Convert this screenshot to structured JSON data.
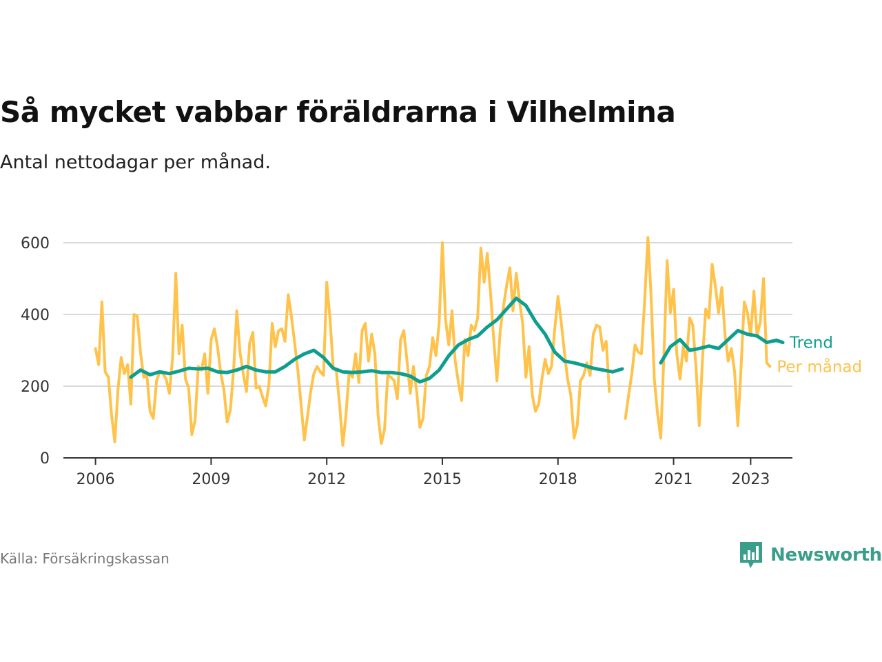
{
  "title": "Så mycket vabbar föräldrarna i Vilhelmina",
  "subtitle": "Antal nettodagar per månad.",
  "source": "Källa: Försäkringskassan",
  "brand": {
    "name": "Newsworthy",
    "color": "#3a9e8a",
    "icon": "speech-bubble-bar-chart-icon"
  },
  "colors": {
    "trend": "#0e9e8e",
    "monthly": "#ffc24a",
    "grid": "#d9d9d9",
    "axis": "#333333"
  },
  "chart_data": {
    "type": "line",
    "title": "Så mycket vabbar föräldrarna i Vilhelmina",
    "subtitle": "Antal nettodagar per månad.",
    "xlabel": "",
    "ylabel": "",
    "x_ticks": [
      "2006",
      "2009",
      "2012",
      "2015",
      "2018",
      "2021",
      "2023"
    ],
    "y_ticks": [
      0,
      200,
      400,
      600
    ],
    "ylim": [
      0,
      700
    ],
    "xlim": [
      "2005-03",
      "2024-02"
    ],
    "grid": true,
    "legend": "end-of-line labels",
    "series": [
      {
        "name": "Trend",
        "color": "#0e9e8e",
        "points": [
          [
            "2006-12",
            225
          ],
          [
            "2007-03",
            245
          ],
          [
            "2007-06",
            232
          ],
          [
            "2007-09",
            240
          ],
          [
            "2007-12",
            235
          ],
          [
            "2008-03",
            242
          ],
          [
            "2008-06",
            250
          ],
          [
            "2008-09",
            248
          ],
          [
            "2008-12",
            250
          ],
          [
            "2009-03",
            240
          ],
          [
            "2009-06",
            238
          ],
          [
            "2009-09",
            245
          ],
          [
            "2009-12",
            255
          ],
          [
            "2010-03",
            245
          ],
          [
            "2010-06",
            240
          ],
          [
            "2010-09",
            240
          ],
          [
            "2010-12",
            255
          ],
          [
            "2011-03",
            275
          ],
          [
            "2011-06",
            290
          ],
          [
            "2011-09",
            300
          ],
          [
            "2011-12",
            280
          ],
          [
            "2012-03",
            250
          ],
          [
            "2012-06",
            240
          ],
          [
            "2012-09",
            238
          ],
          [
            "2012-12",
            240
          ],
          [
            "2013-03",
            243
          ],
          [
            "2013-06",
            238
          ],
          [
            "2013-09",
            238
          ],
          [
            "2013-12",
            235
          ],
          [
            "2014-03",
            228
          ],
          [
            "2014-06",
            212
          ],
          [
            "2014-09",
            222
          ],
          [
            "2014-12",
            245
          ],
          [
            "2015-03",
            285
          ],
          [
            "2015-06",
            315
          ],
          [
            "2015-09",
            330
          ],
          [
            "2015-12",
            340
          ],
          [
            "2016-03",
            365
          ],
          [
            "2016-06",
            385
          ],
          [
            "2016-09",
            415
          ],
          [
            "2016-12",
            445
          ],
          [
            "2017-03",
            425
          ],
          [
            "2017-06",
            380
          ],
          [
            "2017-09",
            345
          ],
          [
            "2017-12",
            295
          ],
          [
            "2018-03",
            270
          ],
          [
            "2018-06",
            265
          ],
          [
            "2018-09",
            258
          ],
          [
            "2018-12",
            250
          ],
          [
            "2019-03",
            245
          ],
          [
            "2019-06",
            240
          ],
          [
            "2019-09",
            248
          ],
          null,
          [
            "2020-09",
            265
          ],
          [
            "2020-12",
            310
          ],
          [
            "2021-03",
            330
          ],
          [
            "2021-06",
            300
          ],
          [
            "2021-09",
            305
          ],
          [
            "2021-12",
            312
          ],
          [
            "2022-03",
            305
          ],
          [
            "2022-06",
            330
          ],
          [
            "2022-09",
            355
          ],
          [
            "2022-12",
            345
          ],
          [
            "2023-03",
            340
          ],
          [
            "2023-06",
            322
          ],
          [
            "2023-09",
            328
          ],
          [
            "2023-11",
            322
          ]
        ]
      },
      {
        "name": "Per månad",
        "color": "#ffc24a",
        "points": [
          [
            "2006-01",
            305
          ],
          [
            "2006-02",
            260
          ],
          [
            "2006-03",
            435
          ],
          [
            "2006-04",
            240
          ],
          [
            "2006-05",
            225
          ],
          [
            "2006-06",
            120
          ],
          [
            "2006-07",
            45
          ],
          [
            "2006-08",
            190
          ],
          [
            "2006-09",
            280
          ],
          [
            "2006-10",
            235
          ],
          [
            "2006-11",
            260
          ],
          [
            "2006-12",
            150
          ],
          [
            "2007-01",
            400
          ],
          [
            "2007-02",
            395
          ],
          [
            "2007-03",
            295
          ],
          [
            "2007-04",
            225
          ],
          [
            "2007-05",
            230
          ],
          [
            "2007-06",
            130
          ],
          [
            "2007-07",
            110
          ],
          [
            "2007-08",
            215
          ],
          [
            "2007-09",
            240
          ],
          [
            "2007-10",
            235
          ],
          [
            "2007-11",
            220
          ],
          [
            "2007-12",
            180
          ],
          [
            "2008-01",
            280
          ],
          [
            "2008-02",
            515
          ],
          [
            "2008-03",
            290
          ],
          [
            "2008-04",
            370
          ],
          [
            "2008-05",
            220
          ],
          [
            "2008-06",
            195
          ],
          [
            "2008-07",
            65
          ],
          [
            "2008-08",
            105
          ],
          [
            "2008-09",
            255
          ],
          [
            "2008-10",
            245
          ],
          [
            "2008-11",
            290
          ],
          [
            "2008-12",
            180
          ],
          [
            "2009-01",
            330
          ],
          [
            "2009-02",
            360
          ],
          [
            "2009-03",
            310
          ],
          [
            "2009-04",
            235
          ],
          [
            "2009-05",
            190
          ],
          [
            "2009-06",
            100
          ],
          [
            "2009-07",
            135
          ],
          [
            "2009-08",
            245
          ],
          [
            "2009-09",
            410
          ],
          [
            "2009-10",
            295
          ],
          [
            "2009-11",
            235
          ],
          [
            "2009-12",
            185
          ],
          [
            "2010-01",
            320
          ],
          [
            "2010-02",
            350
          ],
          [
            "2010-03",
            195
          ],
          [
            "2010-04",
            200
          ],
          [
            "2010-05",
            170
          ],
          [
            "2010-06",
            145
          ],
          [
            "2010-07",
            205
          ],
          [
            "2010-08",
            375
          ],
          [
            "2010-09",
            310
          ],
          [
            "2010-10",
            355
          ],
          [
            "2010-11",
            360
          ],
          [
            "2010-12",
            325
          ],
          [
            "2011-01",
            455
          ],
          [
            "2011-02",
            395
          ],
          [
            "2011-03",
            320
          ],
          [
            "2011-04",
            245
          ],
          [
            "2011-05",
            150
          ],
          [
            "2011-06",
            50
          ],
          [
            "2011-07",
            115
          ],
          [
            "2011-08",
            185
          ],
          [
            "2011-09",
            235
          ],
          [
            "2011-10",
            255
          ],
          [
            "2011-11",
            240
          ],
          [
            "2011-12",
            230
          ],
          [
            "2012-01",
            490
          ],
          [
            "2012-02",
            390
          ],
          [
            "2012-03",
            255
          ],
          [
            "2012-04",
            240
          ],
          [
            "2012-05",
            150
          ],
          [
            "2012-06",
            35
          ],
          [
            "2012-07",
            120
          ],
          [
            "2012-08",
            240
          ],
          [
            "2012-09",
            225
          ],
          [
            "2012-10",
            290
          ],
          [
            "2012-11",
            210
          ],
          [
            "2012-12",
            355
          ],
          [
            "2013-01",
            375
          ],
          [
            "2013-02",
            270
          ],
          [
            "2013-03",
            345
          ],
          [
            "2013-04",
            290
          ],
          [
            "2013-05",
            115
          ],
          [
            "2013-06",
            40
          ],
          [
            "2013-07",
            80
          ],
          [
            "2013-08",
            230
          ],
          [
            "2013-09",
            225
          ],
          [
            "2013-10",
            215
          ],
          [
            "2013-11",
            165
          ],
          [
            "2013-12",
            330
          ],
          [
            "2014-01",
            355
          ],
          [
            "2014-02",
            270
          ],
          [
            "2014-03",
            180
          ],
          [
            "2014-04",
            255
          ],
          [
            "2014-05",
            185
          ],
          [
            "2014-06",
            85
          ],
          [
            "2014-07",
            110
          ],
          [
            "2014-08",
            230
          ],
          [
            "2014-09",
            255
          ],
          [
            "2014-10",
            335
          ],
          [
            "2014-11",
            285
          ],
          [
            "2014-12",
            375
          ],
          [
            "2015-01",
            600
          ],
          [
            "2015-02",
            385
          ],
          [
            "2015-03",
            315
          ],
          [
            "2015-04",
            410
          ],
          [
            "2015-05",
            270
          ],
          [
            "2015-06",
            210
          ],
          [
            "2015-07",
            160
          ],
          [
            "2015-08",
            330
          ],
          [
            "2015-09",
            285
          ],
          [
            "2015-10",
            370
          ],
          [
            "2015-11",
            355
          ],
          [
            "2015-12",
            390
          ],
          [
            "2016-01",
            585
          ],
          [
            "2016-02",
            490
          ],
          [
            "2016-03",
            570
          ],
          [
            "2016-04",
            460
          ],
          [
            "2016-05",
            330
          ],
          [
            "2016-06",
            215
          ],
          [
            "2016-07",
            355
          ],
          [
            "2016-08",
            420
          ],
          [
            "2016-09",
            480
          ],
          [
            "2016-10",
            530
          ],
          [
            "2016-11",
            410
          ],
          [
            "2016-12",
            515
          ],
          [
            "2017-01",
            440
          ],
          [
            "2017-02",
            375
          ],
          [
            "2017-03",
            225
          ],
          [
            "2017-04",
            310
          ],
          [
            "2017-05",
            175
          ],
          [
            "2017-06",
            130
          ],
          [
            "2017-07",
            150
          ],
          [
            "2017-08",
            220
          ],
          [
            "2017-09",
            275
          ],
          [
            "2017-10",
            235
          ],
          [
            "2017-11",
            255
          ],
          [
            "2017-12",
            360
          ],
          [
            "2018-01",
            450
          ],
          [
            "2018-02",
            380
          ],
          [
            "2018-03",
            295
          ],
          [
            "2018-04",
            220
          ],
          [
            "2018-05",
            175
          ],
          [
            "2018-06",
            55
          ],
          [
            "2018-07",
            90
          ],
          [
            "2018-08",
            215
          ],
          [
            "2018-09",
            230
          ],
          [
            "2018-10",
            265
          ],
          [
            "2018-11",
            230
          ],
          [
            "2018-12",
            345
          ],
          [
            "2019-01",
            370
          ],
          [
            "2019-02",
            365
          ],
          [
            "2019-03",
            300
          ],
          [
            "2019-04",
            325
          ],
          [
            "2019-05",
            185
          ],
          null,
          [
            "2019-10",
            110
          ],
          [
            "2019-11",
            175
          ],
          [
            "2019-12",
            235
          ],
          [
            "2020-01",
            315
          ],
          [
            "2020-02",
            295
          ],
          [
            "2020-03",
            290
          ],
          [
            "2020-04",
            440
          ],
          [
            "2020-05",
            615
          ],
          [
            "2020-06",
            450
          ],
          [
            "2020-07",
            220
          ],
          [
            "2020-08",
            125
          ],
          [
            "2020-09",
            55
          ],
          [
            "2020-10",
            290
          ],
          [
            "2020-11",
            550
          ],
          [
            "2020-12",
            405
          ],
          [
            "2021-01",
            470
          ],
          [
            "2021-02",
            290
          ],
          [
            "2021-03",
            220
          ],
          [
            "2021-04",
            310
          ],
          [
            "2021-05",
            270
          ],
          [
            "2021-06",
            390
          ],
          [
            "2021-07",
            370
          ],
          [
            "2021-08",
            250
          ],
          [
            "2021-09",
            90
          ],
          [
            "2021-10",
            275
          ],
          [
            "2021-11",
            415
          ],
          [
            "2021-12",
            390
          ],
          [
            "2022-01",
            540
          ],
          [
            "2022-02",
            480
          ],
          [
            "2022-03",
            405
          ],
          [
            "2022-04",
            475
          ],
          [
            "2022-05",
            345
          ],
          [
            "2022-06",
            270
          ],
          [
            "2022-07",
            305
          ],
          [
            "2022-08",
            240
          ],
          [
            "2022-09",
            90
          ],
          [
            "2022-10",
            250
          ],
          [
            "2022-11",
            435
          ],
          [
            "2022-12",
            405
          ],
          [
            "2023-01",
            340
          ],
          [
            "2023-02",
            465
          ],
          [
            "2023-03",
            340
          ],
          [
            "2023-04",
            380
          ],
          [
            "2023-05",
            500
          ],
          [
            "2023-06",
            265
          ],
          [
            "2023-07",
            255
          ]
        ]
      }
    ]
  }
}
